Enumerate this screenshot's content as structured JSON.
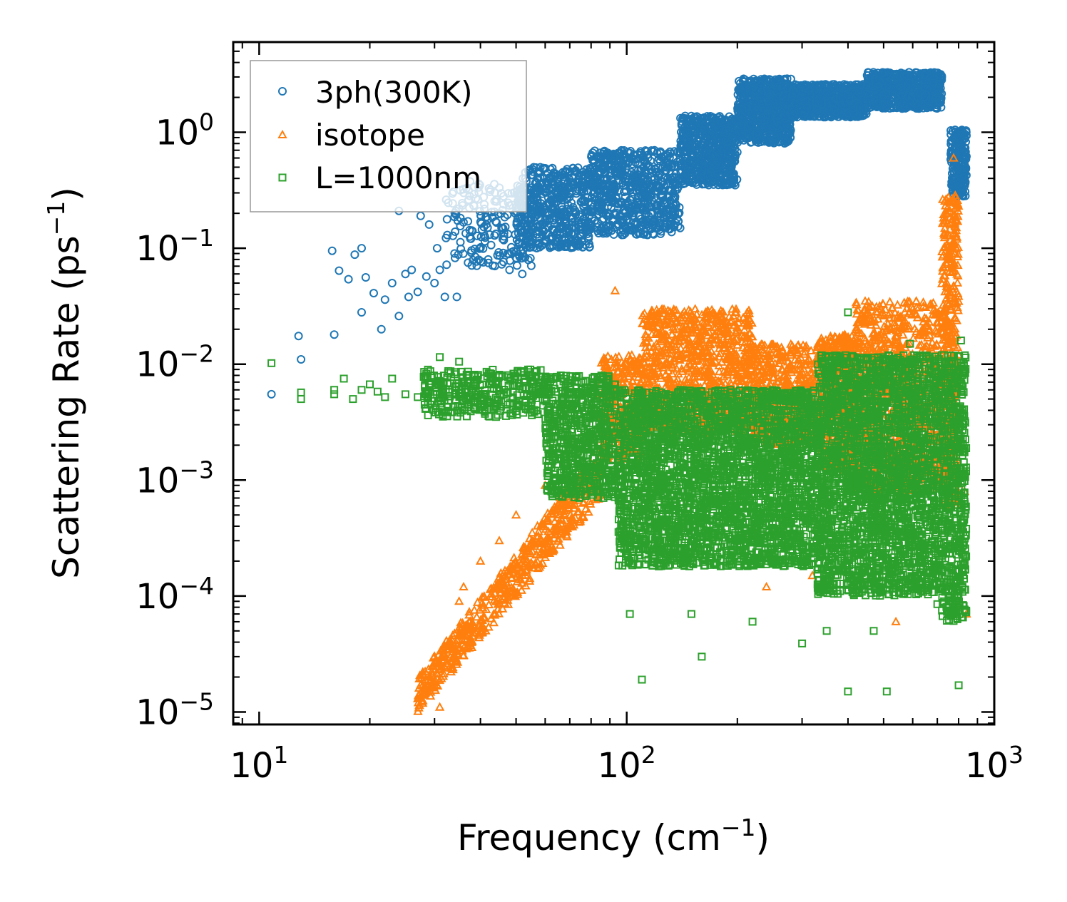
{
  "chart_data": {
    "type": "scatter",
    "xscale": "log",
    "yscale": "log",
    "xlim": [
      8.5,
      1000
    ],
    "ylim": [
      7.8e-06,
      6.0
    ],
    "xlabel": {
      "text": "Frequency (cm",
      "sup": "−1",
      "end": ")"
    },
    "ylabel": {
      "text": "Scattering Rate (ps",
      "sup": "−1",
      "end": ")"
    },
    "xticks": [
      {
        "value": 10,
        "base": "10",
        "exp": "1"
      },
      {
        "value": 100,
        "base": "10",
        "exp": "2"
      },
      {
        "value": 1000,
        "base": "10",
        "exp": "3"
      }
    ],
    "yticks": [
      {
        "value": 1,
        "base": "10",
        "exp": "0"
      },
      {
        "value": 0.1,
        "base": "10",
        "exp": "−1"
      },
      {
        "value": 0.01,
        "base": "10",
        "exp": "−2"
      },
      {
        "value": 0.001,
        "base": "10",
        "exp": "−3"
      },
      {
        "value": 0.0001,
        "base": "10",
        "exp": "−4"
      },
      {
        "value": 1e-05,
        "base": "10",
        "exp": "−5"
      }
    ],
    "legend_position": "top-left",
    "series": [
      {
        "name": "3ph(300K)",
        "marker": "circle",
        "color": "#1f77b4",
        "points": [
          [
            10.8,
            0.0055
          ],
          [
            12.8,
            0.0175
          ],
          [
            13,
            0.011
          ],
          [
            15.8,
            0.095
          ],
          [
            16,
            0.018
          ],
          [
            16.5,
            0.064
          ],
          [
            17.5,
            0.054
          ],
          [
            18.2,
            0.088
          ],
          [
            19,
            0.1
          ],
          [
            19,
            0.028
          ],
          [
            19.5,
            0.056
          ],
          [
            20.5,
            0.041
          ],
          [
            21.5,
            0.02
          ],
          [
            22,
            0.036
          ],
          [
            23,
            0.05
          ],
          [
            24,
            0.026
          ],
          [
            24,
            0.21
          ],
          [
            25,
            0.06
          ],
          [
            25.5,
            0.038
          ],
          [
            26,
            0.065
          ],
          [
            27,
            0.042
          ],
          [
            27.5,
            0.19
          ],
          [
            28.5,
            0.057
          ],
          [
            29,
            0.16
          ],
          [
            30,
            0.05
          ],
          [
            30.5,
            0.1
          ],
          [
            31,
            0.065
          ],
          [
            32,
            0.038
          ],
          [
            32.5,
            0.13
          ],
          [
            34.5,
            0.038
          ],
          [
            34,
            0.09
          ],
          [
            35,
            0.22
          ],
          [
            36,
            0.3
          ],
          [
            37,
            0.075
          ],
          [
            38,
            0.14
          ],
          [
            40,
            0.1
          ],
          [
            42,
            0.08
          ],
          [
            44,
            0.17
          ],
          [
            46,
            0.12
          ],
          [
            48,
            0.065
          ],
          [
            52,
            0.06
          ],
          [
            53,
            0.45
          ]
        ],
        "bands": [
          {
            "x_from": 32,
            "x_to": 55,
            "y_lo": 0.07,
            "y_hi": 0.38,
            "n": 180
          },
          {
            "x_from": 50,
            "x_to": 80,
            "y_lo": 0.1,
            "y_hi": 0.5,
            "n": 500
          },
          {
            "x_from": 80,
            "x_to": 140,
            "y_lo": 0.13,
            "y_hi": 0.7,
            "n": 650
          },
          {
            "x_from": 140,
            "x_to": 200,
            "y_lo": 0.35,
            "y_hi": 1.4,
            "n": 600
          },
          {
            "x_from": 200,
            "x_to": 280,
            "y_lo": 0.8,
            "y_hi": 2.9,
            "n": 700
          },
          {
            "x_from": 280,
            "x_to": 450,
            "y_lo": 1.35,
            "y_hi": 2.6,
            "n": 700
          },
          {
            "x_from": 450,
            "x_to": 720,
            "y_lo": 1.6,
            "y_hi": 3.3,
            "n": 700
          },
          {
            "x_from": 760,
            "x_to": 840,
            "y_lo": 0.28,
            "y_hi": 1.05,
            "n": 200
          }
        ]
      },
      {
        "name": "isotope",
        "marker": "triangle",
        "color": "#ff7f0e",
        "points": [
          [
            27,
            1.3e-05
          ],
          [
            29,
            1.6e-05
          ],
          [
            30,
            1.8e-05
          ],
          [
            31,
            1.1e-05
          ],
          [
            32,
            2.4e-05
          ],
          [
            35,
            9e-05
          ],
          [
            36,
            0.00012
          ],
          [
            40,
            0.0002
          ],
          [
            45,
            0.0003
          ],
          [
            50,
            0.0005
          ],
          [
            60,
            0.0009
          ],
          [
            93,
            0.043
          ],
          [
            240,
            0.00012
          ],
          [
            320,
            0.00015
          ],
          [
            540,
            6e-05
          ],
          [
            840,
            7e-05
          ],
          [
            830,
            0.0008
          ],
          [
            780,
            0.025
          ],
          [
            775,
            0.6
          ],
          [
            800,
            0.012
          ]
        ],
        "bands": [
          {
            "x_from": 27,
            "x_to": 85,
            "y_lo_start": 1e-05,
            "y_hi_start": 2e-05,
            "y_lo_end": 0.0007,
            "y_hi_end": 0.002,
            "n": 600,
            "ramp": true
          },
          {
            "x_from": 85,
            "x_to": 110,
            "y_lo": 0.0015,
            "y_hi": 0.012,
            "n": 300
          },
          {
            "x_from": 110,
            "x_to": 220,
            "y_lo": 0.0025,
            "y_hi": 0.03,
            "n": 1000
          },
          {
            "x_from": 220,
            "x_to": 330,
            "y_lo": 0.002,
            "y_hi": 0.015,
            "n": 500
          },
          {
            "x_from": 330,
            "x_to": 420,
            "y_lo": 0.0012,
            "y_hi": 0.018,
            "n": 500
          },
          {
            "x_from": 420,
            "x_to": 720,
            "y_lo": 0.0008,
            "y_hi": 0.035,
            "n": 900
          },
          {
            "x_from": 720,
            "x_to": 800,
            "y_lo": 0.0006,
            "y_hi": 0.3,
            "n": 400
          }
        ]
      },
      {
        "name": "L=1000nm",
        "marker": "square",
        "color": "#2ca02c",
        "points": [
          [
            10.8,
            0.0102
          ],
          [
            13,
            0.0057
          ],
          [
            13,
            0.005
          ],
          [
            16,
            0.0055
          ],
          [
            16,
            0.006
          ],
          [
            17,
            0.0075
          ],
          [
            18,
            0.005
          ],
          [
            19,
            0.006
          ],
          [
            20,
            0.0067
          ],
          [
            21,
            0.0058
          ],
          [
            22,
            0.0052
          ],
          [
            23,
            0.0075
          ],
          [
            25,
            0.0055
          ],
          [
            27,
            0.0052
          ],
          [
            29,
            0.0063
          ],
          [
            31,
            0.0115
          ],
          [
            33,
            0.006
          ],
          [
            35,
            0.0105
          ],
          [
            110,
            1.9e-05
          ],
          [
            160,
            3e-05
          ],
          [
            300,
            3.9e-05
          ],
          [
            400,
            1.5e-05
          ],
          [
            510,
            1.5e-05
          ],
          [
            800,
            1.7e-05
          ],
          [
            102,
            7e-05
          ],
          [
            150,
            7e-05
          ],
          [
            220,
            6e-05
          ],
          [
            350,
            5e-05
          ],
          [
            470,
            5e-05
          ],
          [
            700,
            8.5e-05
          ],
          [
            400,
            0.028
          ],
          [
            590,
            0.015
          ],
          [
            812,
            0.016
          ]
        ],
        "bands": [
          {
            "x_from": 28,
            "x_to": 60,
            "y_lo": 0.0035,
            "y_hi": 0.009,
            "n": 350
          },
          {
            "x_from": 60,
            "x_to": 95,
            "y_lo": 0.0007,
            "y_hi": 0.008,
            "n": 700
          },
          {
            "x_from": 95,
            "x_to": 330,
            "y_lo": 0.00018,
            "y_hi": 0.006,
            "n": 3000
          },
          {
            "x_from": 330,
            "x_to": 720,
            "y_lo": 0.0001,
            "y_hi": 0.012,
            "n": 2400
          },
          {
            "x_from": 720,
            "x_to": 840,
            "y_lo": 6e-05,
            "y_hi": 0.012,
            "n": 500
          }
        ]
      }
    ]
  }
}
